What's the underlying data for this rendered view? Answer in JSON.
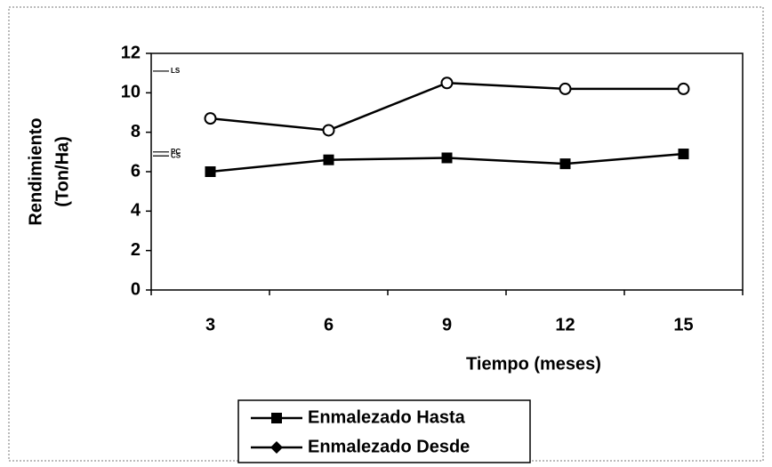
{
  "chart_data": {
    "type": "line",
    "ylabel": [
      "Rendimiento",
      "(Ton/Ha)"
    ],
    "xlabel": "Tiempo (meses)",
    "categories": [
      "3",
      "6",
      "9",
      "12",
      "15"
    ],
    "series": [
      {
        "name": "Enmalezado Hasta",
        "color": "#000000",
        "marker": "square",
        "values": [
          6.0,
          6.6,
          6.7,
          6.4,
          6.9
        ]
      },
      {
        "name": "Enmalezado Desde",
        "color": "#000000",
        "marker": "circle",
        "values": [
          8.7,
          8.1,
          10.5,
          10.2,
          10.2
        ]
      }
    ],
    "reference_lines": [
      {
        "label": "LS",
        "value": 11.1
      },
      {
        "label": "PC",
        "value": 7.0
      },
      {
        "label": "CS",
        "value": 6.8
      }
    ],
    "ylim": [
      0,
      12
    ],
    "yticks": [
      0,
      2,
      4,
      6,
      8,
      10,
      12
    ],
    "legend": "bottom"
  }
}
